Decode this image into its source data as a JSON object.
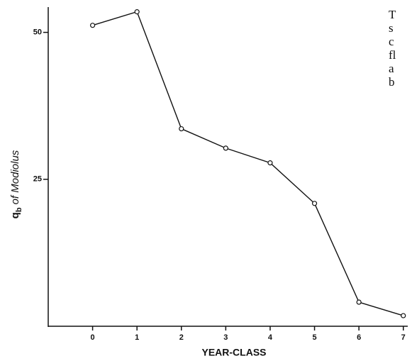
{
  "chart_data": {
    "type": "line",
    "ylabel": {
      "symbol": "q",
      "subscript": "b",
      "text": "of Modiolus"
    },
    "xlabel": "YEAR-CLASS",
    "x": [
      0,
      1,
      2,
      3,
      4,
      5,
      6,
      7
    ],
    "values": [
      51.2,
      53.5,
      33.6,
      30.3,
      27.8,
      20.9,
      4.1,
      1.8
    ],
    "color": "#111111",
    "xlim": [
      -1,
      7.1
    ],
    "ylim": [
      0,
      54.3
    ],
    "xticks": [
      0,
      1,
      2,
      3,
      4,
      5,
      6,
      7
    ],
    "yticks": [
      25,
      50
    ],
    "side_text": [
      "T",
      "s",
      "c",
      "fl",
      "a",
      "b"
    ]
  }
}
